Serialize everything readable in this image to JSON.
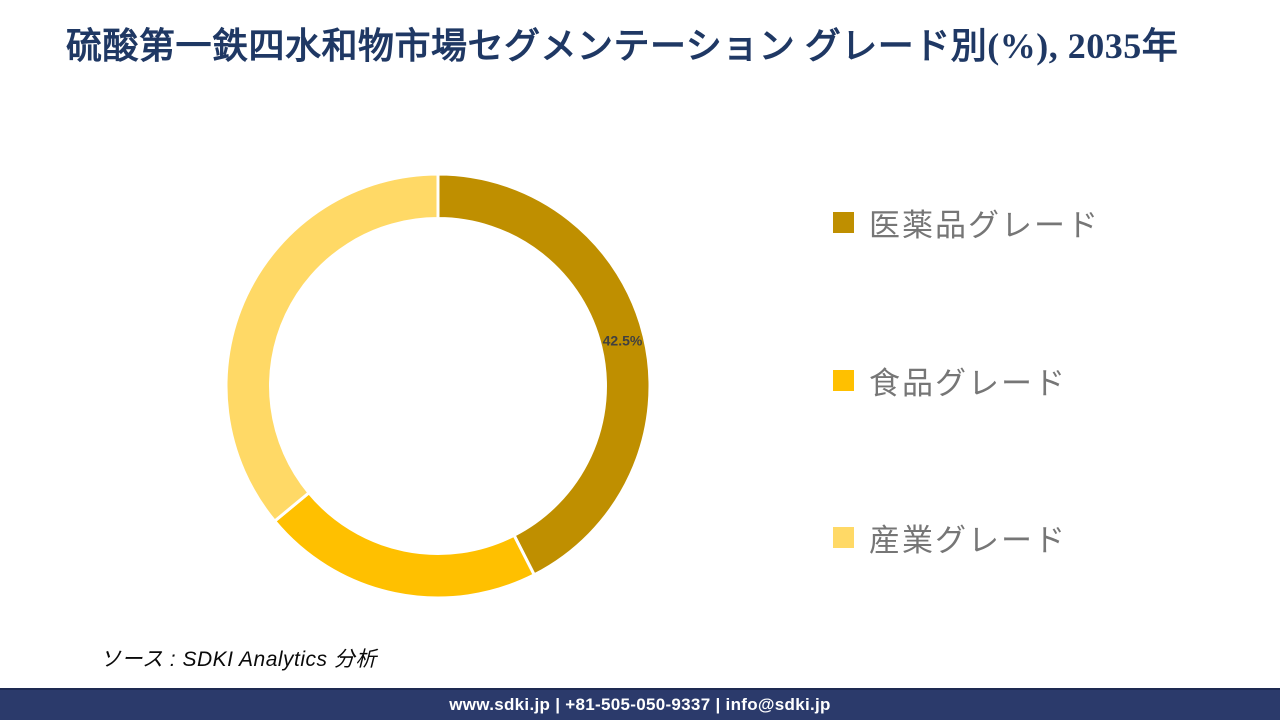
{
  "page": {
    "title": "硫酸第一鉄四水和物市場セグメンテーション グレード別(%), 2035年",
    "source_note": "ソース : SDKI Analytics 分析",
    "footer_text": "www.sdki.jp | +81-505-050-9337 | info@sdki.jp"
  },
  "colors": {
    "title_navy": "#1F3864",
    "footer_navy": "#2B3A6B",
    "legend_text_gray": "#767676",
    "data_label_gray": "#404040",
    "segment_gap_white": "#FFFFFF"
  },
  "chart_data": {
    "type": "pie",
    "subtype": "donut",
    "title": "硫酸第一鉄四水和物市場セグメンテーション グレード別(%), 2035年",
    "unit": "%",
    "categories": [
      "医薬品グレード",
      "食品グレード",
      "産業グレード"
    ],
    "values": [
      42.5,
      21.5,
      36
    ],
    "labels": [
      "42.5%",
      "",
      ""
    ],
    "colors": [
      "#BF8F00",
      "#FFC000",
      "#FFD966"
    ],
    "start_angle_deg": 0,
    "direction": "clockwise",
    "inner_radius_ratio": 0.79,
    "grid": false,
    "legend_position": "right"
  },
  "legend": {
    "items": [
      {
        "label": "医薬品グレード",
        "color": "#BF8F00"
      },
      {
        "label": "食品グレード",
        "color": "#FFC000"
      },
      {
        "label": "産業グレード",
        "color": "#FFD966"
      }
    ]
  }
}
